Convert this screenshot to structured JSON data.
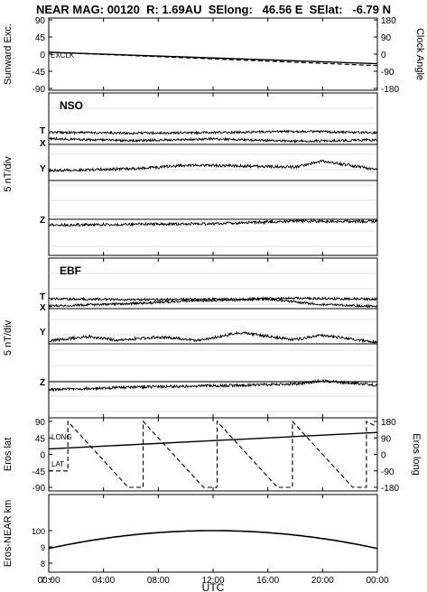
{
  "title": "NEAR MAG: 00120  R: 1.69AU  SElong:   46.56 E  SElat:   -6.79 N",
  "x_axis": {
    "label": "UTC",
    "ticks": [
      "00:00",
      "04:00",
      "08:00",
      "12:00",
      "16:00",
      "20:00",
      "00:00"
    ]
  },
  "chart_data": [
    {
      "type": "line",
      "panel": "sunward",
      "ylabel_left": "Sunward Exc.",
      "ylabel_right": "Clock Angle",
      "yticks_left": [
        "90",
        "45",
        "0",
        "-45",
        "-90"
      ],
      "ylim_left": [
        -90,
        90
      ],
      "yticks_right": [
        "180",
        "90",
        "0",
        "-90",
        "-180"
      ],
      "ylim_right": [
        -180,
        180
      ],
      "annotations": [
        "EX",
        "CLK"
      ],
      "series": [
        {
          "label": "EX",
          "x": [
            0,
            24
          ],
          "y": [
            5,
            -25
          ],
          "style": "solid"
        },
        {
          "label": "CLK",
          "x": [
            0,
            24
          ],
          "y": [
            5,
            -30
          ],
          "style": "dashed"
        }
      ]
    },
    {
      "type": "line",
      "panel": "NSO",
      "panel_label": "NSO",
      "ylabel": "5 nT/div",
      "trace_labels": [
        "T",
        "X",
        "Y",
        "Z"
      ],
      "grid": true,
      "series": [
        {
          "label": "T",
          "x": [
            0,
            6,
            12,
            18,
            24
          ],
          "y": [
            0.7,
            0.5,
            0.6,
            0.9,
            0.6
          ]
        },
        {
          "label": "X",
          "x": [
            0,
            6,
            12,
            18,
            24
          ],
          "y": [
            1.3,
            0.8,
            1.2,
            0.7,
            1.0
          ]
        },
        {
          "label": "Y",
          "x": [
            0,
            6,
            10.5,
            18,
            20,
            24
          ],
          "y": [
            2.2,
            2.6,
            3.4,
            3.0,
            4.3,
            2.4
          ]
        },
        {
          "label": "Z",
          "x": [
            0,
            6,
            12,
            18,
            24
          ],
          "y": [
            -1.3,
            -1.1,
            -1.0,
            -0.4,
            -0.5
          ]
        }
      ]
    },
    {
      "type": "line",
      "panel": "EBF",
      "panel_label": "EBF",
      "ylabel": "5 nT/div",
      "trace_labels": [
        "T",
        "X",
        "Y",
        "Z"
      ],
      "grid": true,
      "series": [
        {
          "label": "T",
          "x": [
            0,
            6,
            12,
            18,
            24
          ],
          "y": [
            0.6,
            0.4,
            0.5,
            0.7,
            0.5
          ]
        },
        {
          "label": "X",
          "x": [
            0,
            6,
            10,
            16,
            20,
            24
          ],
          "y": [
            0.6,
            1.1,
            1.7,
            2.1,
            0.9,
            0.5
          ]
        },
        {
          "label": "Y",
          "x": [
            0,
            3,
            5,
            8,
            11,
            14,
            18,
            20,
            24
          ],
          "y": [
            0.7,
            1.6,
            0.8,
            1.5,
            0.8,
            2.5,
            0.9,
            1.9,
            0.3
          ]
        },
        {
          "label": "Z",
          "x": [
            0,
            6,
            12,
            18,
            20,
            24
          ],
          "y": [
            -1.8,
            -1.2,
            -0.9,
            -0.5,
            0.2,
            -0.8
          ]
        }
      ]
    },
    {
      "type": "line",
      "panel": "eros_pos",
      "ylabel_left": "Eros lat",
      "ylabel_right": "Eros long",
      "yticks_left": [
        "90",
        "45",
        "0",
        "-45",
        "-90"
      ],
      "ylim_left": [
        -90,
        90
      ],
      "yticks_right": [
        "180",
        "90",
        "0",
        "-90",
        "-180"
      ],
      "ylim_right": [
        -180,
        180
      ],
      "annotations": [
        "LONG",
        "LAT"
      ],
      "series": [
        {
          "label": "LAT",
          "x": [
            0,
            24
          ],
          "y": [
            15,
            60
          ],
          "style": "solid"
        },
        {
          "label": "LONG",
          "x": [
            0,
            1.4,
            1.4,
            5.8,
            6.9,
            6.9,
            11.3,
            12.3,
            12.3,
            16.7,
            17.8,
            17.8,
            22.2,
            23.2,
            23.2,
            24
          ],
          "y": [
            -90,
            -90,
            180,
            -180,
            -180,
            180,
            -180,
            -180,
            180,
            -180,
            -180,
            180,
            -180,
            -180,
            180,
            150
          ],
          "style": "dashed"
        }
      ]
    },
    {
      "type": "line",
      "panel": "eros_near_km",
      "ylabel": "Eros-NEAR km",
      "yticks": [
        "100",
        "9",
        "8",
        "7"
      ],
      "series": [
        {
          "label": "Eros-NEAR km",
          "x": [
            0,
            4,
            8,
            12,
            16,
            20,
            24
          ],
          "y": [
            8.9,
            9.5,
            9.9,
            10.0,
            9.9,
            9.5,
            8.9
          ]
        }
      ]
    }
  ]
}
